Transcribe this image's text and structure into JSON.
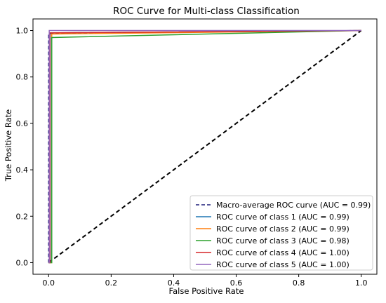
{
  "chart_data": {
    "type": "line",
    "title": "ROC Curve for Multi-class Classification",
    "xlabel": "False Positive Rate",
    "ylabel": "True Positive Rate",
    "xlim": [
      -0.05,
      1.05
    ],
    "ylim": [
      -0.05,
      1.05
    ],
    "xticks": [
      "0.0",
      "0.2",
      "0.4",
      "0.6",
      "0.8",
      "1.0"
    ],
    "yticks": [
      "0.0",
      "0.2",
      "0.4",
      "0.6",
      "0.8",
      "1.0"
    ],
    "grid": false,
    "legend_position": "lower right",
    "diagonal": {
      "x": [
        0,
        1
      ],
      "y": [
        0,
        1
      ],
      "color": "#000000",
      "style": "dashed"
    },
    "series": [
      {
        "name": "Macro-average ROC curve (AUC = 0.99)",
        "color": "#1f1f7a",
        "style": "dashed",
        "x": [
          0,
          0,
          0.01,
          1
        ],
        "y": [
          0,
          0.985,
          0.988,
          1
        ]
      },
      {
        "name": "ROC curve of class 1 (AUC = 0.99)",
        "color": "#1f77b4",
        "style": "solid",
        "x": [
          0,
          0.005,
          0.005,
          1
        ],
        "y": [
          0,
          0,
          0.99,
          1
        ]
      },
      {
        "name": "ROC curve of class 2 (AUC = 0.99)",
        "color": "#ff7f0e",
        "style": "solid",
        "x": [
          0,
          0.01,
          0.01,
          1
        ],
        "y": [
          0,
          0,
          0.985,
          1
        ]
      },
      {
        "name": "ROC curve of class 3 (AUC = 0.98)",
        "color": "#2ca02c",
        "style": "solid",
        "x": [
          0,
          0.01,
          0.01,
          1
        ],
        "y": [
          0,
          0,
          0.97,
          1
        ]
      },
      {
        "name": "ROC curve of class 4 (AUC = 1.00)",
        "color": "#d62728",
        "style": "solid",
        "x": [
          0,
          0.004,
          0.004,
          1
        ],
        "y": [
          0,
          0,
          0.99,
          1
        ]
      },
      {
        "name": "ROC curve of class 5 (AUC = 1.00)",
        "color": "#9467bd",
        "style": "solid",
        "x": [
          0,
          0.002,
          0.002,
          1
        ],
        "y": [
          0,
          0,
          1.0,
          1
        ]
      }
    ]
  }
}
